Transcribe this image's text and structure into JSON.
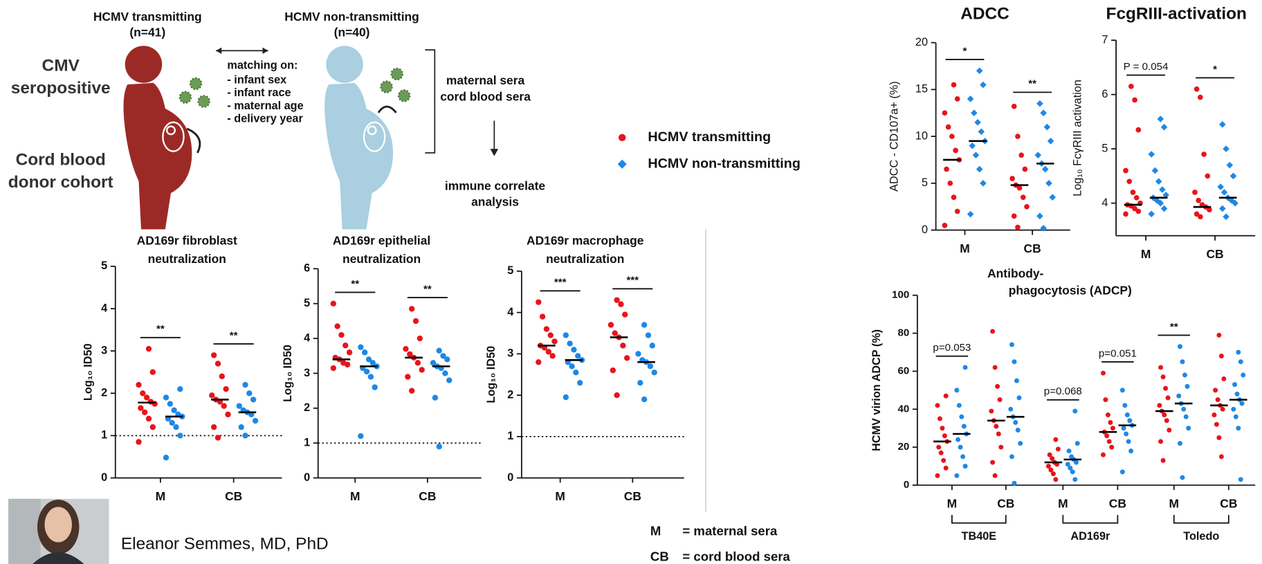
{
  "diagram": {
    "groups": [
      {
        "title": "HCMV transmitting",
        "n": "(n=41)"
      },
      {
        "title": "HCMV non-transmitting",
        "n": "(n=40)"
      }
    ],
    "cohorts": [
      "CMV seropositive",
      "Cord blood donor cohort"
    ],
    "matching": {
      "heading": "matching on:",
      "items": [
        "- infant sex",
        "- infant race",
        "- maternal age",
        "- delivery year"
      ]
    },
    "samples": [
      "maternal sera",
      "cord blood sera"
    ],
    "analysis": [
      "immune correlate",
      "analysis"
    ]
  },
  "legend": [
    {
      "name": "HCMV transmitting",
      "color": "#e8141b",
      "marker": "circle"
    },
    {
      "name": "HCMV non-transmitting",
      "color": "#1e88e5",
      "marker": "diamond"
    }
  ],
  "key": [
    [
      "M",
      "= maternal sera"
    ],
    [
      "CB",
      "= cord blood sera"
    ]
  ],
  "presenter": "Eleanor Semmes, MD, PhD",
  "chart_data": [
    {
      "type": "strip",
      "title": [
        "AD169r fibroblast",
        "neutralization"
      ],
      "ylabel": "Log₁₀ ID50",
      "categories": [
        "M",
        "CB"
      ],
      "ylim": [
        0,
        5
      ],
      "yticks": [
        0,
        1,
        2,
        3,
        4,
        5
      ],
      "refline": 1,
      "series": [
        {
          "color": "#e8141b",
          "marker": "circle",
          "values": [
            [
              0.85,
              1.2,
              1.4,
              1.55,
              1.65,
              1.75,
              1.8,
              1.9,
              2.0,
              2.2,
              2.5,
              3.05
            ],
            [
              0.95,
              1.2,
              1.5,
              1.7,
              1.8,
              1.85,
              1.95,
              2.1,
              2.4,
              2.7,
              2.9
            ]
          ],
          "medians": [
            1.78,
            1.85
          ]
        },
        {
          "color": "#1e88e5",
          "marker": "circle",
          "values": [
            [
              0.48,
              1.0,
              1.2,
              1.3,
              1.4,
              1.45,
              1.5,
              1.6,
              1.75,
              1.9,
              2.1
            ],
            [
              1.0,
              1.2,
              1.35,
              1.5,
              1.55,
              1.6,
              1.7,
              1.85,
              2.0,
              2.2
            ]
          ],
          "medians": [
            1.45,
            1.55
          ]
        }
      ],
      "annotations": [
        {
          "category": 0,
          "label": "**"
        },
        {
          "category": 1,
          "label": "**"
        }
      ]
    },
    {
      "type": "strip",
      "title": [
        "AD169r epithelial",
        "neutralization"
      ],
      "ylabel": "Log₁₀ ID50",
      "categories": [
        "M",
        "CB"
      ],
      "ylim": [
        0,
        6
      ],
      "yticks": [
        0,
        1,
        2,
        3,
        4,
        5,
        6
      ],
      "refline": 1,
      "series": [
        {
          "color": "#e8141b",
          "marker": "circle",
          "values": [
            [
              3.15,
              3.25,
              3.3,
              3.4,
              3.45,
              3.6,
              3.8,
              4.1,
              4.35,
              5.0
            ],
            [
              2.5,
              2.9,
              3.1,
              3.3,
              3.45,
              3.55,
              3.7,
              4.0,
              4.5,
              4.85
            ]
          ],
          "medians": [
            3.4,
            3.45
          ]
        },
        {
          "color": "#1e88e5",
          "marker": "circle",
          "values": [
            [
              1.2,
              2.6,
              2.9,
              3.05,
              3.15,
              3.2,
              3.3,
              3.4,
              3.6,
              3.75
            ],
            [
              0.9,
              2.3,
              2.8,
              3.0,
              3.15,
              3.2,
              3.3,
              3.4,
              3.5,
              3.65
            ]
          ],
          "medians": [
            3.2,
            3.2
          ]
        }
      ],
      "annotations": [
        {
          "category": 0,
          "label": "**"
        },
        {
          "category": 1,
          "label": "**"
        }
      ]
    },
    {
      "type": "strip",
      "title": [
        "AD169r macrophage",
        "neutralization"
      ],
      "ylabel": "Log₁₀ ID50",
      "categories": [
        "M",
        "CB"
      ],
      "ylim": [
        0,
        5
      ],
      "yticks": [
        0,
        1,
        2,
        3,
        4,
        5
      ],
      "refline": 1,
      "series": [
        {
          "color": "#e8141b",
          "marker": "circle",
          "values": [
            [
              2.8,
              2.95,
              3.05,
              3.15,
              3.2,
              3.3,
              3.45,
              3.6,
              3.9,
              4.25
            ],
            [
              2.0,
              2.6,
              2.9,
              3.2,
              3.4,
              3.5,
              3.7,
              3.95,
              4.2,
              4.3
            ]
          ],
          "medians": [
            3.2,
            3.4
          ]
        },
        {
          "color": "#1e88e5",
          "marker": "circle",
          "values": [
            [
              1.95,
              2.3,
              2.55,
              2.7,
              2.8,
              2.85,
              2.95,
              3.1,
              3.25,
              3.45
            ],
            [
              1.9,
              2.3,
              2.55,
              2.7,
              2.8,
              2.85,
              3.0,
              3.2,
              3.45,
              3.7
            ]
          ],
          "medians": [
            2.85,
            2.8
          ]
        }
      ],
      "annotations": [
        {
          "category": 0,
          "label": "***"
        },
        {
          "category": 1,
          "label": "***"
        }
      ]
    },
    {
      "type": "strip",
      "title": [
        "ADCC"
      ],
      "ylabel": "ADCC - CD107a+ (%)",
      "categories": [
        "M",
        "CB"
      ],
      "ylim": [
        0,
        20
      ],
      "yticks": [
        0,
        5,
        10,
        15,
        20
      ],
      "series": [
        {
          "color": "#e8141b",
          "marker": "circle",
          "values": [
            [
              0.5,
              2,
              3.5,
              5,
              6.5,
              7.5,
              8.5,
              10,
              11,
              12.5,
              14,
              15.5
            ],
            [
              0.3,
              1.5,
              2.5,
              3.5,
              4.5,
              4.8,
              5.5,
              6.5,
              8,
              10,
              13.2
            ]
          ],
          "medians": [
            7.5,
            4.8
          ]
        },
        {
          "color": "#1e88e5",
          "marker": "diamond",
          "values": [
            [
              1.7,
              5,
              6.5,
              8,
              9,
              9.5,
              10.5,
              11.5,
              12.5,
              14,
              15.5,
              17
            ],
            [
              0.2,
              1.5,
              3.5,
              5,
              6.5,
              7.1,
              8,
              9.5,
              11,
              12.5,
              13.5
            ]
          ],
          "medians": [
            9.5,
            7.1
          ]
        }
      ],
      "annotations": [
        {
          "category": 0,
          "label": "*"
        },
        {
          "category": 1,
          "label": "**"
        }
      ]
    },
    {
      "type": "strip",
      "title": [
        "FcgRIII-activation"
      ],
      "ylabel": "Log₁₀ FcγRIII activation",
      "categories": [
        "M",
        "CB"
      ],
      "ylim": [
        3.4,
        7
      ],
      "yticks": [
        4,
        5,
        6,
        7
      ],
      "series": [
        {
          "color": "#e8141b",
          "marker": "circle",
          "values": [
            [
              3.8,
              3.85,
              3.9,
              3.95,
              3.97,
              4.0,
              4.1,
              4.2,
              4.4,
              4.6,
              5.35,
              5.9,
              6.15
            ],
            [
              3.75,
              3.8,
              3.88,
              3.93,
              3.97,
              4.05,
              4.2,
              4.5,
              4.9,
              5.95,
              6.1
            ]
          ],
          "medians": [
            3.97,
            3.93
          ]
        },
        {
          "color": "#1e88e5",
          "marker": "diamond",
          "values": [
            [
              3.8,
              3.9,
              4.0,
              4.05,
              4.1,
              4.15,
              4.25,
              4.4,
              4.6,
              4.9,
              5.4,
              5.55
            ],
            [
              3.75,
              3.9,
              4.0,
              4.05,
              4.1,
              4.2,
              4.3,
              4.5,
              4.7,
              5.0,
              5.45
            ]
          ],
          "medians": [
            4.1,
            4.1
          ]
        }
      ],
      "annotations": [
        {
          "category": 0,
          "label": "P = 0.054"
        },
        {
          "category": 1,
          "label": "*"
        }
      ]
    },
    {
      "type": "strip",
      "title": [
        "Antibody-",
        "phagocytosis (ADCP)"
      ],
      "ylabel": "HCMV virion ADCP (%)",
      "categories": [
        "M",
        "CB",
        "M",
        "CB",
        "M",
        "CB"
      ],
      "groups": [
        "TB40E",
        "AD169r",
        "Toledo"
      ],
      "ylim": [
        0,
        100
      ],
      "yticks": [
        0,
        20,
        40,
        60,
        80,
        100
      ],
      "series": [
        {
          "color": "#e8141b",
          "marker": "circle",
          "values": [
            [
              5,
              9,
              13,
              17,
              20,
              23,
              26,
              30,
              35,
              42,
              47
            ],
            [
              5,
              12,
              20,
              27,
              31,
              34,
              39,
              45,
              52,
              62,
              81
            ],
            [
              3,
              6,
              8,
              10,
              11,
              12,
              14,
              16,
              19,
              24
            ],
            [
              16,
              20,
              23,
              26,
              28,
              30,
              33,
              37,
              45,
              59
            ],
            [
              13,
              23,
              29,
              34,
              37,
              39,
              42,
              46,
              51,
              57,
              62
            ],
            [
              15,
              25,
              32,
              37,
              40,
              42,
              45,
              50,
              56,
              68,
              79
            ]
          ],
          "medians": [
            23,
            34,
            12,
            28,
            39,
            42
          ]
        },
        {
          "color": "#1e88e5",
          "marker": "circle",
          "values": [
            [
              5,
              10,
              15,
              20,
              24,
              27,
              31,
              36,
              42,
              50,
              62
            ],
            [
              1,
              15,
              22,
              29,
              33,
              36,
              40,
              46,
              55,
              65,
              74
            ],
            [
              3,
              7,
              9,
              11,
              12,
              13.5,
              15,
              18,
              22,
              39
            ],
            [
              7,
              18,
              23,
              27,
              30,
              31.5,
              34,
              37,
              42,
              50
            ],
            [
              4,
              22,
              30,
              36,
              40,
              43,
              47,
              52,
              58,
              65,
              73
            ],
            [
              3,
              30,
              36,
              40,
              43,
              45,
              48,
              53,
              58,
              65,
              70
            ]
          ],
          "medians": [
            27,
            36,
            13.5,
            31.5,
            43,
            45
          ]
        }
      ],
      "annotations": [
        {
          "category": 0,
          "label": "p=0.053"
        },
        {
          "category": 2,
          "label": "p=0.068"
        },
        {
          "category": 3,
          "label": "p=0.051"
        },
        {
          "category": 4,
          "label": "**"
        }
      ]
    }
  ]
}
